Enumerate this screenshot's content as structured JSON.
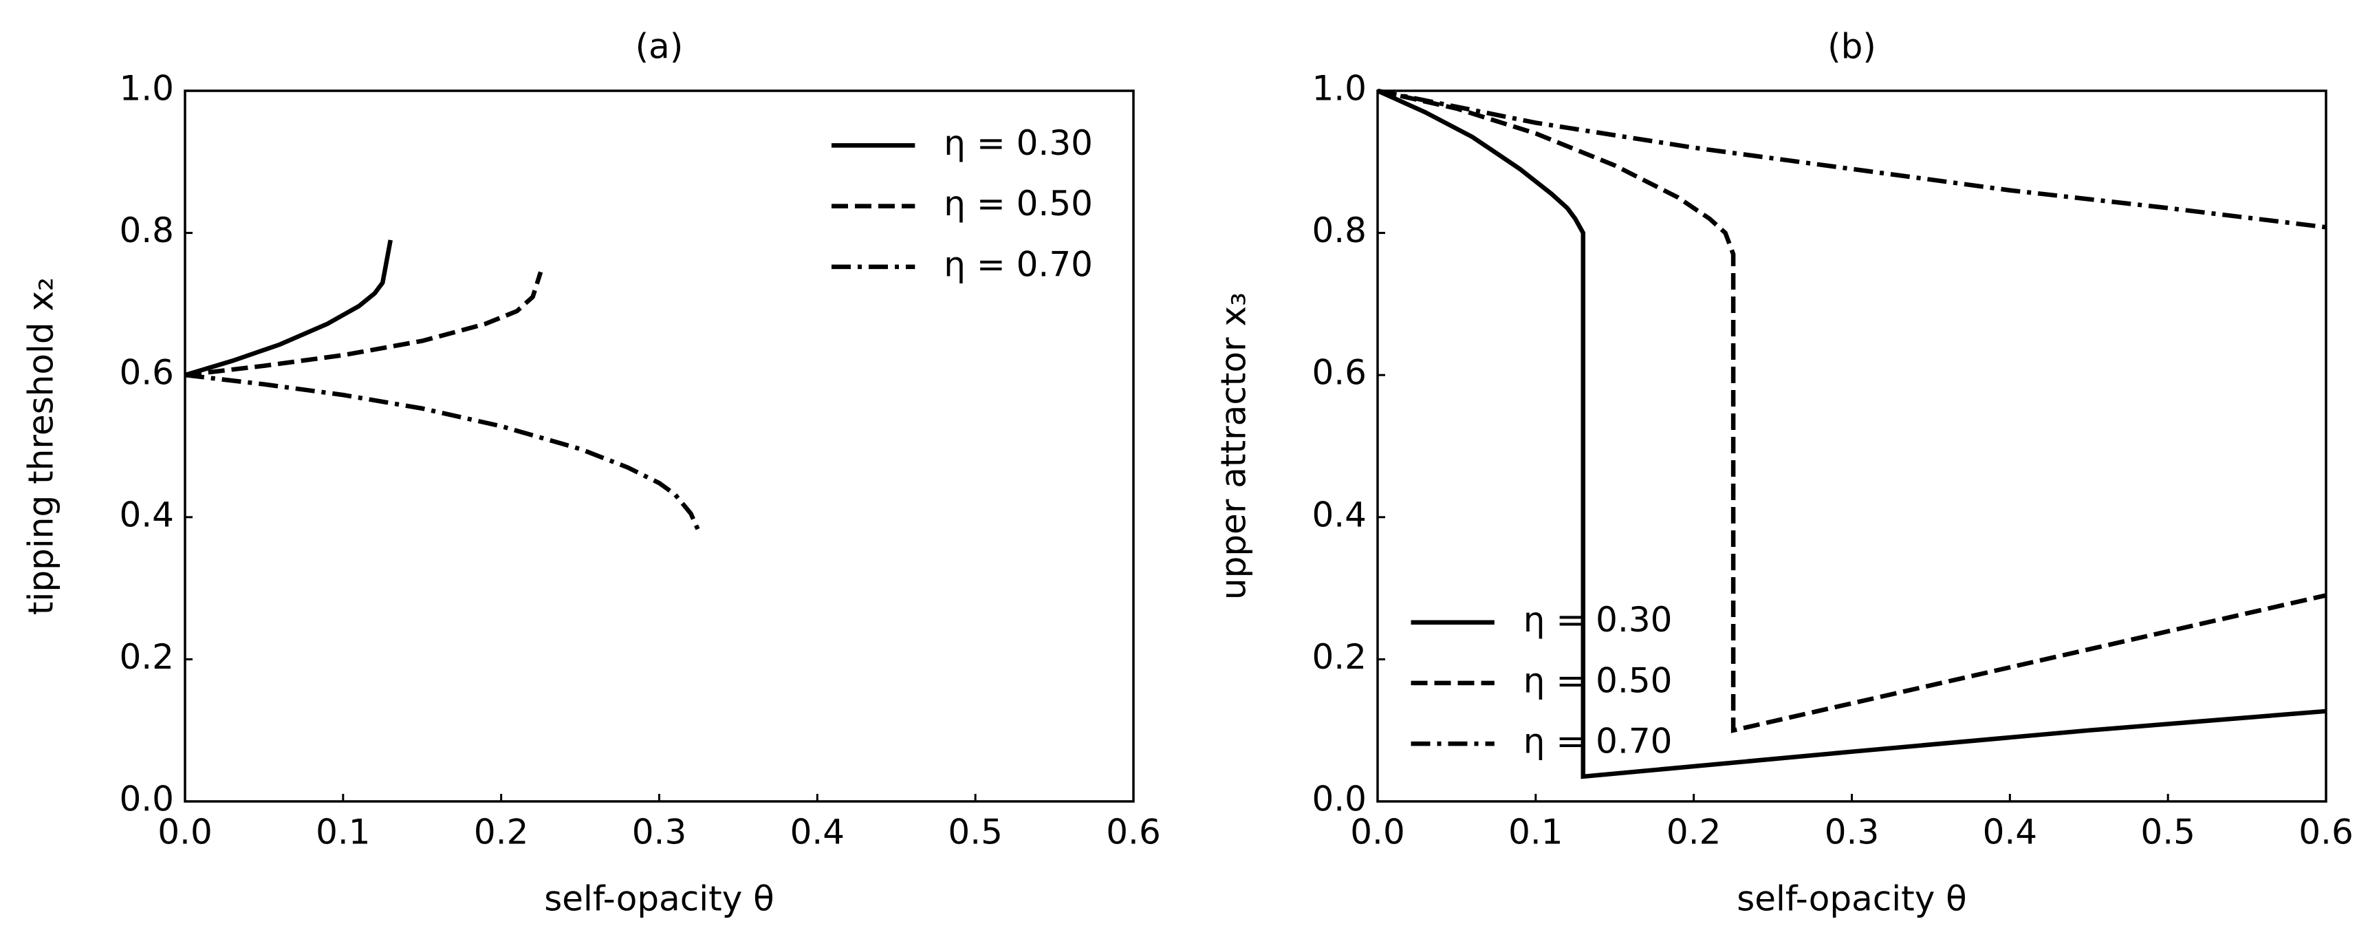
{
  "chart_data": [
    {
      "type": "line",
      "title": "(a)",
      "xlabel": "self-opacity θ",
      "ylabel": "tipping threshold x₂",
      "xlim": [
        0,
        0.6
      ],
      "ylim": [
        0,
        1.0
      ],
      "xticks": [
        {
          "value": 0,
          "label": "0.0"
        },
        0.1,
        0.2,
        0.3,
        0.4,
        0.5,
        0.6
      ],
      "yticks": [
        {
          "value": 0,
          "label": "0.0"
        },
        0.2,
        0.4,
        0.6,
        0.8,
        {
          "value": 1.0,
          "label": "1.0"
        }
      ],
      "legend": "upper right",
      "series": [
        {
          "name": "η = 0.30",
          "color": "#000000",
          "linestyle": "solid",
          "x": [
            0,
            0.03,
            0.06,
            0.09,
            0.11,
            0.12,
            0.125,
            0.13
          ],
          "values": [
            0.6,
            0.62,
            0.643,
            0.672,
            0.697,
            0.715,
            0.73,
            0.79
          ]
        },
        {
          "name": "η = 0.50",
          "color": "#000000",
          "linestyle": "dashed",
          "x": [
            0,
            0.05,
            0.1,
            0.15,
            0.19,
            0.21,
            0.22,
            0.225
          ],
          "values": [
            0.6,
            0.613,
            0.628,
            0.648,
            0.672,
            0.69,
            0.71,
            0.745
          ]
        },
        {
          "name": "η = 0.70",
          "color": "#000000",
          "linestyle": "dashdot",
          "x": [
            0,
            0.05,
            0.1,
            0.15,
            0.2,
            0.25,
            0.28,
            0.3,
            0.31,
            0.32,
            0.325
          ],
          "values": [
            0.6,
            0.587,
            0.572,
            0.553,
            0.528,
            0.496,
            0.47,
            0.448,
            0.432,
            0.405,
            0.38
          ]
        }
      ]
    },
    {
      "type": "line",
      "title": "(b)",
      "xlabel": "self-opacity θ",
      "ylabel": "upper attractor x₃",
      "xlim": [
        0,
        0.6
      ],
      "ylim": [
        0,
        1.0
      ],
      "xticks": [
        {
          "value": 0,
          "label": "0.0"
        },
        0.1,
        0.2,
        0.3,
        0.4,
        0.5,
        0.6
      ],
      "yticks": [
        {
          "value": 0,
          "label": "0.0"
        },
        0.2,
        0.4,
        0.6,
        0.8,
        {
          "value": 1.0,
          "label": "1.0"
        }
      ],
      "legend": "lower left",
      "series": [
        {
          "name": "η = 0.30",
          "color": "#000000",
          "linestyle": "solid",
          "x": [
            0,
            0.03,
            0.06,
            0.09,
            0.11,
            0.12,
            0.125,
            0.13,
            0.13,
            0.3,
            0.45,
            0.6
          ],
          "values": [
            1.0,
            0.97,
            0.935,
            0.89,
            0.855,
            0.835,
            0.82,
            0.8,
            0.035,
            0.07,
            0.1,
            0.127
          ]
        },
        {
          "name": "η = 0.50",
          "color": "#000000",
          "linestyle": "dashed",
          "x": [
            0,
            0.05,
            0.1,
            0.15,
            0.19,
            0.21,
            0.22,
            0.225,
            0.225,
            0.6
          ],
          "values": [
            1.0,
            0.975,
            0.94,
            0.895,
            0.85,
            0.82,
            0.8,
            0.77,
            0.1,
            0.29
          ]
        },
        {
          "name": "η = 0.70",
          "color": "#000000",
          "linestyle": "dashdot",
          "x": [
            0,
            0.1,
            0.2,
            0.3,
            0.4,
            0.5,
            0.6
          ],
          "values": [
            1.0,
            0.955,
            0.92,
            0.89,
            0.86,
            0.835,
            0.808
          ]
        }
      ]
    }
  ]
}
